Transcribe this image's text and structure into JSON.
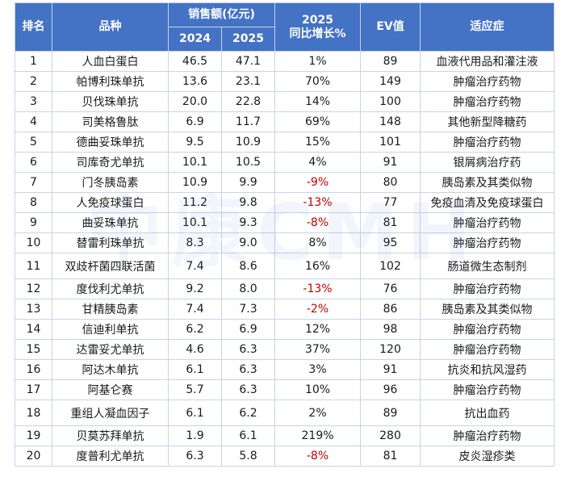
{
  "header": {
    "rank": "排名",
    "name": "品种",
    "sales": "销售额(亿元)",
    "y2024": "2024",
    "y2025": "2025",
    "growth": "2025\n同比增长%",
    "ev": "EV值",
    "indication": "适应症"
  },
  "rows": [
    {
      "rank": "1",
      "name": "人血白蛋白",
      "s2024": "46.5",
      "s2025": "47.1",
      "growth": "1%",
      "ev": "89",
      "indication": "血液代用品和灌注液",
      "neg": false
    },
    {
      "rank": "2",
      "name": "帕博利珠单抗",
      "s2024": "13.6",
      "s2025": "23.1",
      "growth": "70%",
      "ev": "149",
      "indication": "肿瘤治疗药物",
      "neg": false
    },
    {
      "rank": "3",
      "name": "贝伐珠单抗",
      "s2024": "20.0",
      "s2025": "22.8",
      "growth": "14%",
      "ev": "100",
      "indication": "肿瘤治疗药物",
      "neg": false
    },
    {
      "rank": "4",
      "name": "司美格鲁肽",
      "s2024": "6.9",
      "s2025": "11.7",
      "growth": "69%",
      "ev": "148",
      "indication": "其他新型降糖药",
      "neg": false
    },
    {
      "rank": "5",
      "name": "德曲妥珠单抗",
      "s2024": "9.5",
      "s2025": "10.9",
      "growth": "15%",
      "ev": "101",
      "indication": "肿瘤治疗药物",
      "neg": false
    },
    {
      "rank": "6",
      "name": "司库奇尤单抗",
      "s2024": "10.1",
      "s2025": "10.5",
      "growth": "4%",
      "ev": "91",
      "indication": "银屑病治疗药",
      "neg": false
    },
    {
      "rank": "7",
      "name": "门冬胰岛素",
      "s2024": "10.9",
      "s2025": "9.9",
      "growth": "-9%",
      "ev": "80",
      "indication": "胰岛素及其类似物",
      "neg": true
    },
    {
      "rank": "8",
      "name": "人免疫球蛋白",
      "s2024": "11.2",
      "s2025": "9.8",
      "growth": "-13%",
      "ev": "77",
      "indication": "免疫血清及免疫球蛋白",
      "neg": true
    },
    {
      "rank": "9",
      "name": "曲妥珠单抗",
      "s2024": "10.1",
      "s2025": "9.3",
      "growth": "-8%",
      "ev": "81",
      "indication": "肿瘤治疗药物",
      "neg": true
    },
    {
      "rank": "10",
      "name": "替雷利珠单抗",
      "s2024": "8.3",
      "s2025": "9.0",
      "growth": "8%",
      "ev": "95",
      "indication": "肿瘤治疗药物",
      "neg": false
    },
    {
      "rank": "11",
      "name": "双歧杆菌四联活菌",
      "s2024": "7.4",
      "s2025": "8.6",
      "growth": "16%",
      "ev": "102",
      "indication": "肠道微生态制剂",
      "neg": false
    },
    {
      "rank": "12",
      "name": "度伐利尤单抗",
      "s2024": "9.2",
      "s2025": "8.0",
      "growth": "-13%",
      "ev": "76",
      "indication": "肿瘤治疗药物",
      "neg": true
    },
    {
      "rank": "13",
      "name": "甘精胰岛素",
      "s2024": "7.4",
      "s2025": "7.3",
      "growth": "-2%",
      "ev": "86",
      "indication": "胰岛素及其类似物",
      "neg": true
    },
    {
      "rank": "14",
      "name": "信迪利单抗",
      "s2024": "6.2",
      "s2025": "6.9",
      "growth": "12%",
      "ev": "98",
      "indication": "肿瘤治疗药物",
      "neg": false
    },
    {
      "rank": "15",
      "name": "达雷妥尤单抗",
      "s2024": "4.6",
      "s2025": "6.3",
      "growth": "37%",
      "ev": "120",
      "indication": "肿瘤治疗药物",
      "neg": false
    },
    {
      "rank": "16",
      "name": "阿达木单抗",
      "s2024": "6.1",
      "s2025": "6.3",
      "growth": "3%",
      "ev": "91",
      "indication": "抗炎和抗风湿药",
      "neg": false
    },
    {
      "rank": "17",
      "name": "阿基仑赛",
      "s2024": "5.7",
      "s2025": "6.3",
      "growth": "10%",
      "ev": "96",
      "indication": "肿瘤治疗药物",
      "neg": false
    },
    {
      "rank": "18",
      "name": "重组人凝血因子",
      "s2024": "6.1",
      "s2025": "6.2",
      "growth": "2%",
      "ev": "89",
      "indication": "抗出血药",
      "neg": false
    },
    {
      "rank": "19",
      "name": "贝莫苏拜单抗",
      "s2024": "1.9",
      "s2025": "6.1",
      "growth": "219%",
      "ev": "280",
      "indication": "肿瘤治疗药物",
      "neg": false
    },
    {
      "rank": "20",
      "name": "度普利尤单抗",
      "s2024": "6.3",
      "s2025": "5.8",
      "growth": "-8%",
      "ev": "81",
      "indication": "皮炎湿疹类",
      "neg": true
    }
  ],
  "watermark": "中康CMH",
  "colors": {
    "header_bg": "#4472c4",
    "negative_text": "#c00000",
    "border": "#c9d4e6"
  }
}
